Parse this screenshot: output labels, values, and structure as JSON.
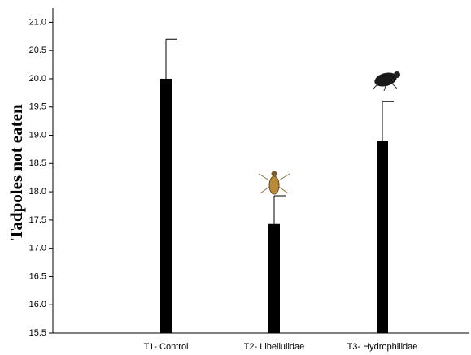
{
  "chart_data": {
    "type": "bar",
    "y_label": "Tadpoles not eaten",
    "categories": [
      "T1- Control",
      "T2- Libellulidae",
      "T3- Hydrophilidae"
    ],
    "values": [
      20.0,
      17.43,
      18.9
    ],
    "errors": [
      0.7,
      0.5,
      0.7
    ],
    "color": "#000000",
    "ylim": [
      15.5,
      21.25
    ],
    "yticks": [
      15.5,
      {
        "value": 16,
        "label": "16.0"
      },
      16.5,
      {
        "value": 17,
        "label": "17.0"
      },
      17.5,
      {
        "value": 18,
        "label": "18.0"
      },
      18.5,
      {
        "value": 19,
        "label": "19.0"
      },
      19.5,
      {
        "value": 20,
        "label": "20.0"
      },
      20.5,
      {
        "value": 21,
        "label": "21.0"
      }
    ]
  }
}
